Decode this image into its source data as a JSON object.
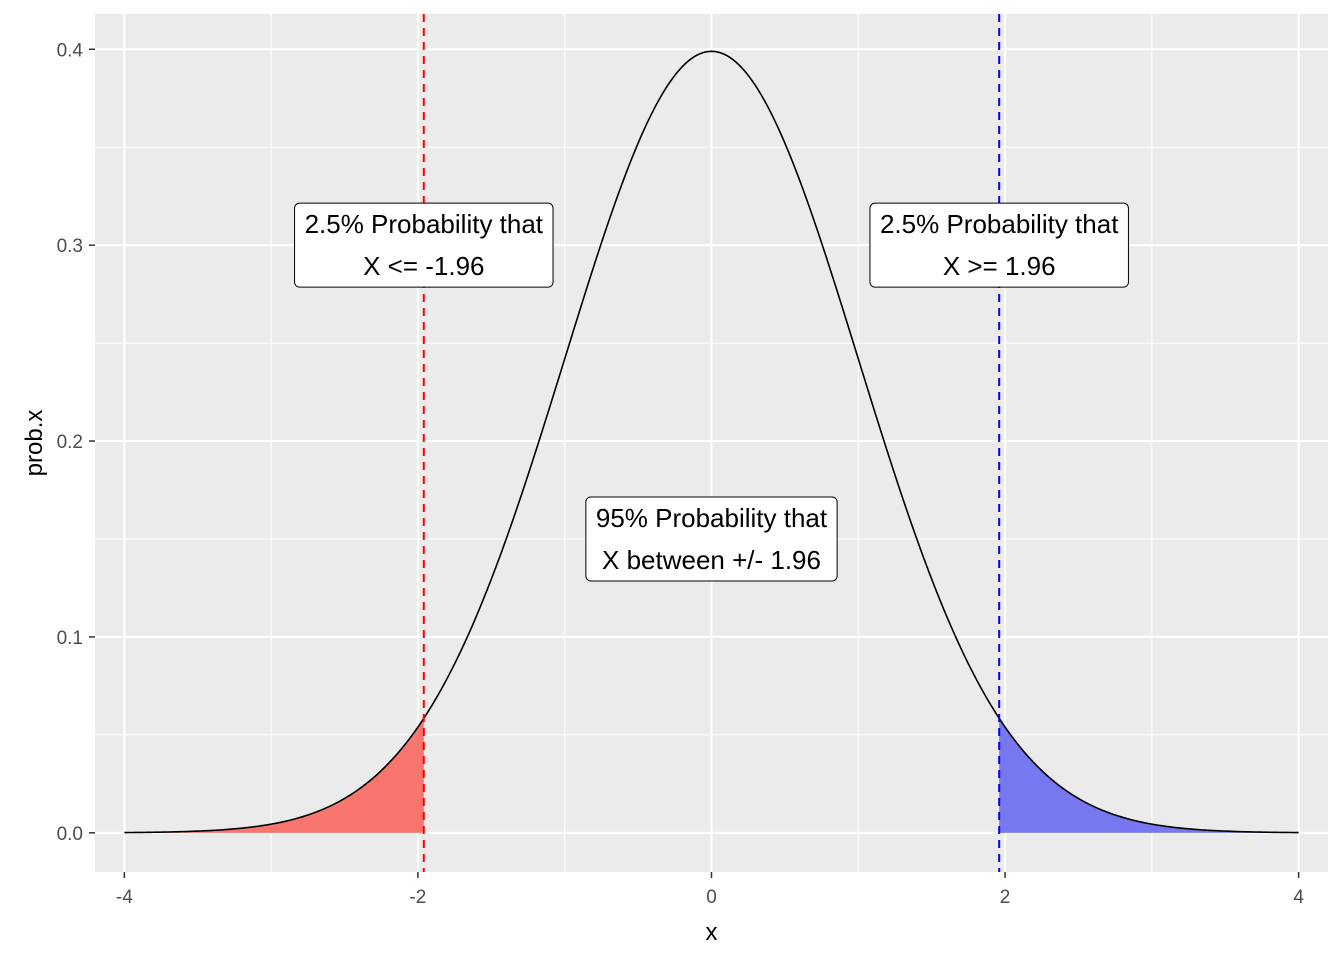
{
  "chart_data": {
    "type": "area",
    "xlabel": "x",
    "ylabel": "prob.x",
    "xlim": [
      -4.2,
      4.2
    ],
    "ylim": [
      -0.02,
      0.418
    ],
    "x_ticks": [
      -4,
      -2,
      0,
      2,
      4
    ],
    "x_tick_labels": [
      "-4",
      "-2",
      "0",
      "2",
      "4"
    ],
    "y_ticks": [
      0.0,
      0.1,
      0.2,
      0.3,
      0.4
    ],
    "y_tick_labels": [
      "0.0",
      "0.1",
      "0.2",
      "0.3",
      "0.4"
    ],
    "grid": true,
    "panel_background": "#EBEBEB",
    "grid_color": "#FFFFFF",
    "series": [
      {
        "kind": "line",
        "distribution": "standard normal density",
        "color": "#000000",
        "x": [
          -4.0,
          -3.75,
          -3.5,
          -3.25,
          -3.0,
          -2.75,
          -2.5,
          -2.25,
          -2.0,
          -1.75,
          -1.5,
          -1.25,
          -1.0,
          -0.75,
          -0.5,
          -0.25,
          0.0,
          0.25,
          0.5,
          0.75,
          1.0,
          1.25,
          1.5,
          1.75,
          2.0,
          2.25,
          2.5,
          2.75,
          3.0,
          3.25,
          3.5,
          3.75,
          4.0
        ],
        "y": [
          0.0001,
          0.0004,
          0.0009,
          0.002,
          0.0044,
          0.0091,
          0.0175,
          0.0317,
          0.054,
          0.0863,
          0.1295,
          0.1826,
          0.242,
          0.3011,
          0.3521,
          0.3867,
          0.3989,
          0.3867,
          0.3521,
          0.3011,
          0.242,
          0.1826,
          0.1295,
          0.0863,
          0.054,
          0.0317,
          0.0175,
          0.0091,
          0.0044,
          0.002,
          0.0009,
          0.0004,
          0.0001
        ]
      }
    ],
    "shaded_regions": [
      {
        "from": -4.0,
        "to": -1.96,
        "color": "#F8766D"
      },
      {
        "from": 1.96,
        "to": 4.0,
        "color": "#7777F0"
      }
    ],
    "vlines": [
      {
        "x": -1.96,
        "color": "#FF0000",
        "style": "dashed"
      },
      {
        "x": 1.96,
        "color": "#0000FF",
        "style": "dashed"
      }
    ],
    "annotations": [
      {
        "x": -1.96,
        "y": 0.3,
        "lines": [
          "2.5% Probability that",
          "X <= -1.96"
        ]
      },
      {
        "x": 1.96,
        "y": 0.3,
        "lines": [
          "2.5% Probability that",
          "X >= 1.96"
        ]
      },
      {
        "x": 0.0,
        "y": 0.15,
        "lines": [
          "95% Probability that",
          "X between +/- 1.96"
        ]
      }
    ]
  }
}
